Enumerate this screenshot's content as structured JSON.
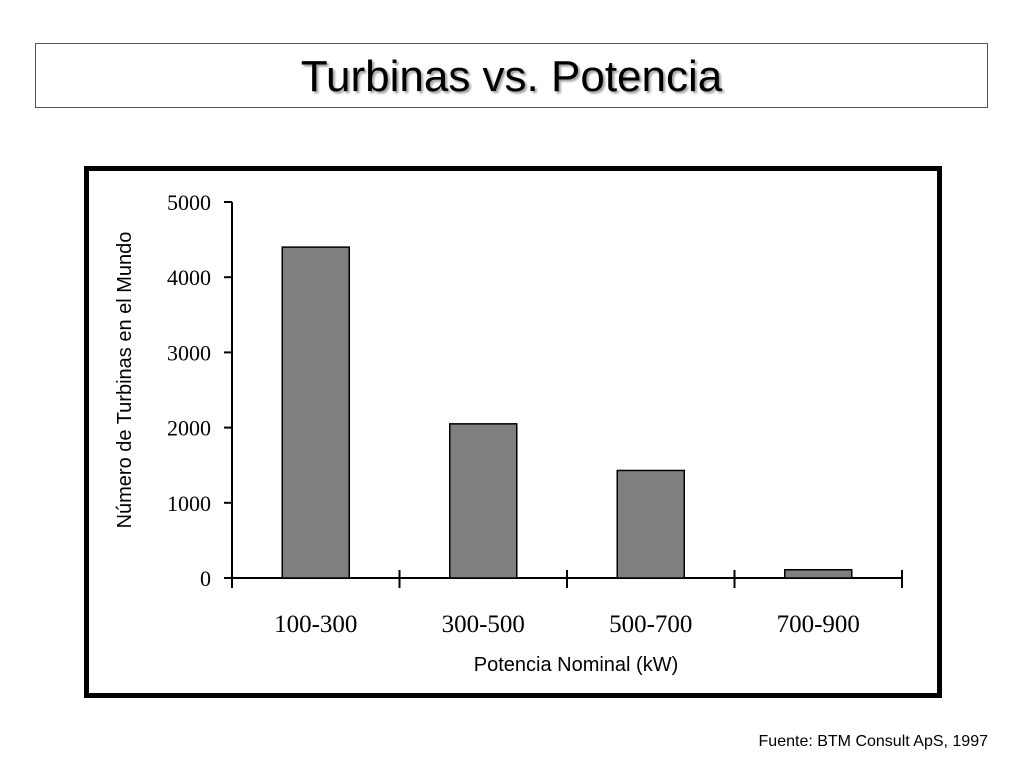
{
  "page": {
    "title": "Turbinas vs. Potencia",
    "source": "Fuente: BTM Consult ApS, 1997"
  },
  "colors": {
    "bar_fill": "#7f7f7f",
    "bar_stroke": "#000000",
    "frame": "#000000"
  },
  "chart_data": {
    "type": "bar",
    "categories": [
      "100-300",
      "300-500",
      "500-700",
      "700-900"
    ],
    "values": [
      4400,
      2050,
      1430,
      110
    ],
    "xlabel": "Potencia Nominal (kW)",
    "ylabel": "Número de Turbinas en el Mundo",
    "ylim": [
      0,
      5000
    ],
    "yticks": [
      0,
      1000,
      2000,
      3000,
      4000,
      5000
    ],
    "grid": false,
    "legend": "none"
  }
}
